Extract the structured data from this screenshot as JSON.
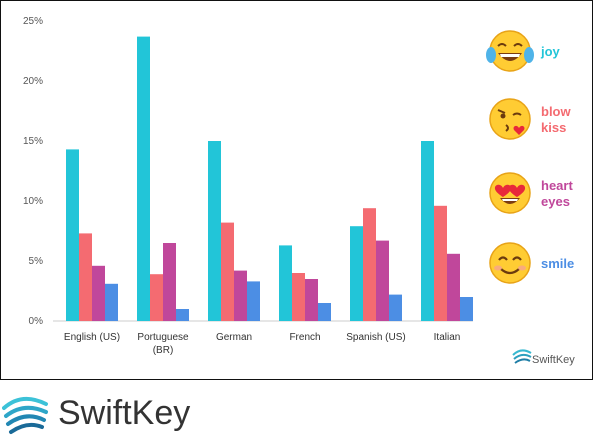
{
  "chart_data": {
    "type": "bar",
    "categories": [
      "English (US)",
      "Portuguese (BR)",
      "German",
      "French",
      "Spanish (US)",
      "Italian"
    ],
    "category_lines": [
      [
        "English (US)"
      ],
      [
        "Portuguese",
        "(BR)"
      ],
      [
        "German"
      ],
      [
        "French"
      ],
      [
        "Spanish (US)"
      ],
      [
        "Italian"
      ]
    ],
    "series": [
      {
        "name": "joy",
        "lines": [
          "joy"
        ],
        "color": "#22c5d8",
        "icon": "tears-of-joy-emoji",
        "values": [
          14.3,
          23.7,
          15.0,
          6.3,
          7.9,
          15.0
        ]
      },
      {
        "name": "blow kiss",
        "lines": [
          "blow",
          "kiss"
        ],
        "color": "#f46b71",
        "icon": "blowing-kiss-emoji",
        "values": [
          7.3,
          3.9,
          8.2,
          4.0,
          9.4,
          9.6
        ]
      },
      {
        "name": "heart eyes",
        "lines": [
          "heart",
          "eyes"
        ],
        "color": "#c0479b",
        "icon": "heart-eyes-emoji",
        "values": [
          4.6,
          6.5,
          4.2,
          3.5,
          6.7,
          5.6
        ]
      },
      {
        "name": "smile",
        "lines": [
          "smile"
        ],
        "color": "#4c8ee4",
        "icon": "smiling-face-emoji",
        "values": [
          3.1,
          1.0,
          3.3,
          1.5,
          2.2,
          2.0
        ]
      }
    ],
    "y_ticks": [
      "0%",
      "5%",
      "10%",
      "15%",
      "20%",
      "25%"
    ],
    "ylim": [
      0,
      25
    ],
    "grid": false,
    "legend_position": "right"
  },
  "watermark": "SwiftKey",
  "footer_logo": "SwiftKey"
}
